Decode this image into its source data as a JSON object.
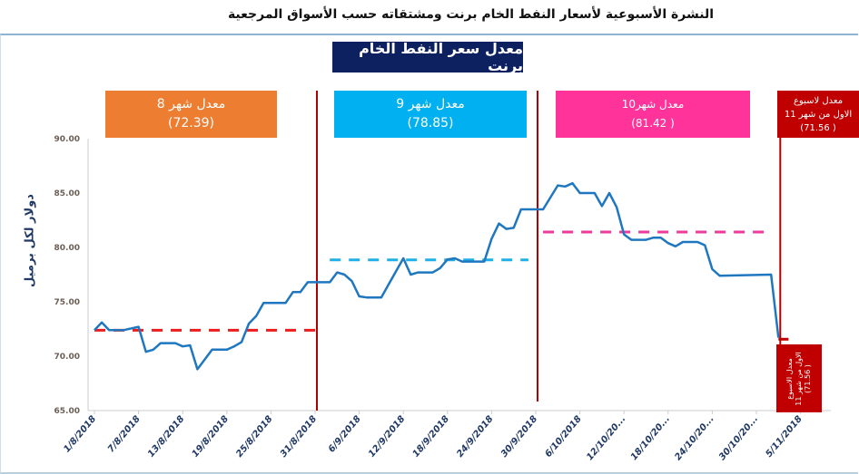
{
  "header": {
    "title": "النشرة الأسبوعية  لأسعار النفط الخام برنت ومشتقاته حسب الأسواق المرجعية"
  },
  "chart_data": {
    "type": "line",
    "title": "معدل سعر النفط الخام  برنت",
    "ylabel": "دولار لكل برميل",
    "ylim": [
      65,
      90
    ],
    "yticks": [
      "65.00",
      "70.00",
      "75.00",
      "80.00",
      "85.00",
      "90.00"
    ],
    "xticks": [
      "1/8/2018",
      "7/8/2018",
      "13/8/2018",
      "19/8/2018",
      "25/8/2018",
      "31/8/2018",
      "6/9/2018",
      "12/9/2018",
      "18/9/2018",
      "24/9/2018",
      "30/9/2018",
      "6/10/2018",
      "12/10/20...",
      "18/10/20...",
      "24/10/20...",
      "30/10/20...",
      "5/11/2018"
    ],
    "xtick_dates": [
      "2018-08-01",
      "2018-08-07",
      "2018-08-13",
      "2018-08-19",
      "2018-08-25",
      "2018-08-31",
      "2018-09-06",
      "2018-09-12",
      "2018-09-18",
      "2018-09-24",
      "2018-09-30",
      "2018-10-06",
      "2018-10-12",
      "2018-10-18",
      "2018-10-24",
      "2018-10-30",
      "2018-11-05"
    ],
    "series": [
      {
        "color": "#1f77c0",
        "points": [
          [
            "2018-08-01",
            72.4
          ],
          [
            "2018-08-02",
            73.1
          ],
          [
            "2018-08-03",
            72.4
          ],
          [
            "2018-08-05",
            72.4
          ],
          [
            "2018-08-07",
            72.7
          ],
          [
            "2018-08-08",
            70.4
          ],
          [
            "2018-08-09",
            70.6
          ],
          [
            "2018-08-10",
            71.2
          ],
          [
            "2018-08-12",
            71.2
          ],
          [
            "2018-08-13",
            70.9
          ],
          [
            "2018-08-14",
            71.0
          ],
          [
            "2018-08-15",
            68.8
          ],
          [
            "2018-08-16",
            69.7
          ],
          [
            "2018-08-17",
            70.6
          ],
          [
            "2018-08-19",
            70.6
          ],
          [
            "2018-08-20",
            70.9
          ],
          [
            "2018-08-21",
            71.3
          ],
          [
            "2018-08-22",
            73.0
          ],
          [
            "2018-08-23",
            73.7
          ],
          [
            "2018-08-24",
            74.9
          ],
          [
            "2018-08-27",
            74.9
          ],
          [
            "2018-08-28",
            75.9
          ],
          [
            "2018-08-29",
            75.9
          ],
          [
            "2018-08-30",
            76.8
          ],
          [
            "2018-09-02",
            76.8
          ],
          [
            "2018-09-03",
            77.7
          ],
          [
            "2018-09-04",
            77.5
          ],
          [
            "2018-09-05",
            76.9
          ],
          [
            "2018-09-06",
            75.5
          ],
          [
            "2018-09-07",
            75.4
          ],
          [
            "2018-09-09",
            75.4
          ],
          [
            "2018-09-10",
            76.6
          ],
          [
            "2018-09-12",
            79.0
          ],
          [
            "2018-09-13",
            77.5
          ],
          [
            "2018-09-14",
            77.7
          ],
          [
            "2018-09-16",
            77.7
          ],
          [
            "2018-09-17",
            78.1
          ],
          [
            "2018-09-18",
            78.9
          ],
          [
            "2018-09-19",
            79.0
          ],
          [
            "2018-09-20",
            78.7
          ],
          [
            "2018-09-23",
            78.7
          ],
          [
            "2018-09-24",
            80.8
          ],
          [
            "2018-09-25",
            82.2
          ],
          [
            "2018-09-26",
            81.7
          ],
          [
            "2018-09-27",
            81.8
          ],
          [
            "2018-09-28",
            83.5
          ],
          [
            "2018-10-01",
            83.5
          ],
          [
            "2018-10-03",
            85.7
          ],
          [
            "2018-10-04",
            85.6
          ],
          [
            "2018-10-05",
            85.9
          ],
          [
            "2018-10-06",
            85.0
          ],
          [
            "2018-10-08",
            85.0
          ],
          [
            "2018-10-09",
            83.8
          ],
          [
            "2018-10-10",
            85.0
          ],
          [
            "2018-10-11",
            83.7
          ],
          [
            "2018-10-12",
            81.2
          ],
          [
            "2018-10-13",
            80.7
          ],
          [
            "2018-10-15",
            80.7
          ],
          [
            "2018-10-16",
            80.9
          ],
          [
            "2018-10-17",
            80.9
          ],
          [
            "2018-10-18",
            80.4
          ],
          [
            "2018-10-19",
            80.1
          ],
          [
            "2018-10-20",
            80.5
          ],
          [
            "2018-10-22",
            80.5
          ],
          [
            "2018-10-23",
            80.2
          ],
          [
            "2018-10-24",
            78.0
          ],
          [
            "2018-10-25",
            77.4
          ],
          [
            "2018-11-01",
            77.5
          ],
          [
            "2018-11-02",
            71.7
          ]
        ]
      }
    ],
    "averages": [
      {
        "label": "معدل شهر 8",
        "value": "(72.39)",
        "num": 72.39,
        "from": "2018-08-01",
        "to": "2018-08-31",
        "color": "#ee1c1c",
        "box_color": "#ed7d31"
      },
      {
        "label": "معدل شهر 9",
        "value": "(78.85)",
        "num": 78.85,
        "from": "2018-09-02",
        "to": "2018-09-29",
        "color": "#1fb0e8",
        "box_color": "#00b0f0"
      },
      {
        "label": "معدل شهر10",
        "value": "( 81.42)",
        "num": 81.42,
        "from": "2018-10-01",
        "to": "2018-10-31",
        "color": "#ee3a9a",
        "box_color": "#ff3399"
      },
      {
        "label": "معدل لاسبوع",
        "label2": "الاول من شهر 11",
        "value": "( 71.56)",
        "num": 71.56,
        "from": "2018-11-02",
        "to": "2018-11-03",
        "color": "#c00000",
        "box_color": "#c00000"
      }
    ],
    "week_note": {
      "line1": "معدل الاسبوع",
      "line2": "الاول من شهر 11",
      "line3": "( 71.56)"
    },
    "dividers": [
      "2018-08-31",
      "2018-09-30",
      "2018-11-02"
    ],
    "grid": false,
    "legend": "none"
  }
}
